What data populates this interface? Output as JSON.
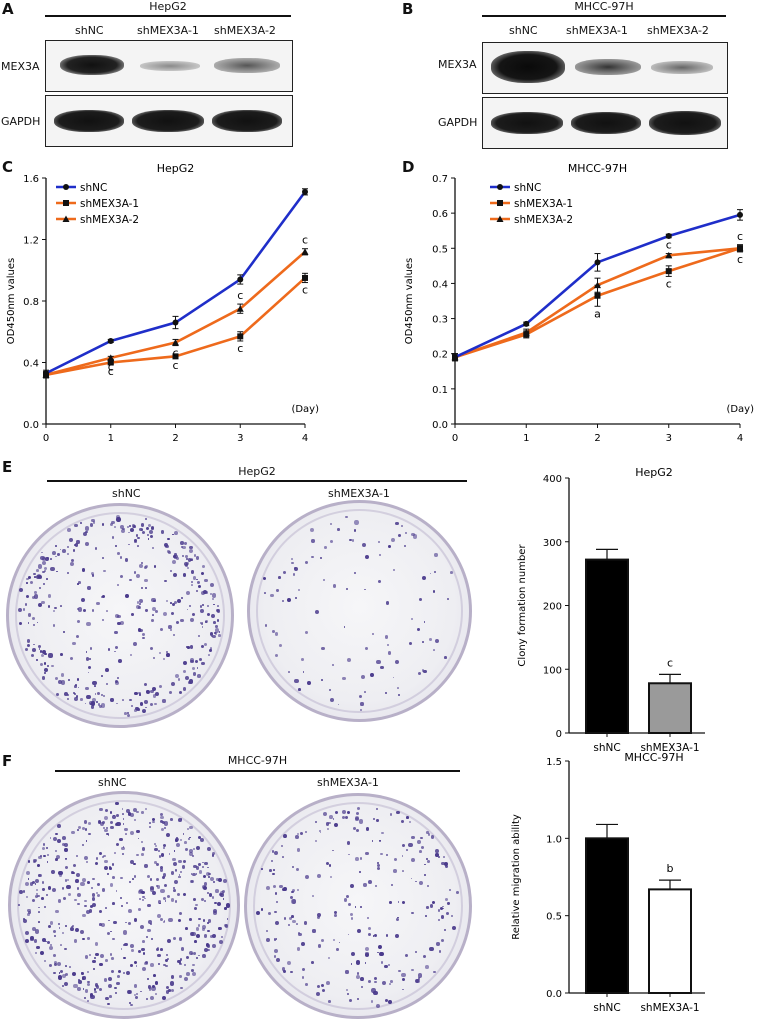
{
  "panels": {
    "A": "A",
    "B": "B",
    "C": "C",
    "D": "D",
    "E": "E",
    "F": "F"
  },
  "blot_a": {
    "title": "HepG2",
    "lanes": [
      "shNC",
      "shMEX3A-1",
      "shMEX3A-2"
    ],
    "rows": [
      "MEX3A",
      "GAPDH"
    ]
  },
  "blot_b": {
    "title": "MHCC-97H",
    "lanes": [
      "shNC",
      "shMEX3A-1",
      "shMEX3A-2"
    ],
    "rows": [
      "MEX3A",
      "GAPDH"
    ]
  },
  "colony_e": {
    "title": "HepG2",
    "labels": [
      "shNC",
      "shMEX3A-1"
    ]
  },
  "colony_f": {
    "title": "MHCC-97H",
    "labels": [
      "shNC",
      "shMEX3A-1"
    ]
  },
  "colors": {
    "shNC": "#1f2ec9",
    "shMEX3A-1": "#ee6a1c",
    "shMEX3A-2": "#ee6a1c",
    "stain": "#4a3a8c"
  },
  "chart_data": [
    {
      "id": "C",
      "type": "line",
      "title": "HepG2",
      "xlabel": "(Day)",
      "ylabel": "OD450nm values",
      "x": [
        0,
        1,
        2,
        3,
        4
      ],
      "xlim": [
        0,
        4
      ],
      "ylim": [
        0,
        1.6
      ],
      "yticks": [
        0.0,
        0.4,
        0.8,
        1.2,
        1.6
      ],
      "ytick_labels": [
        "0.0",
        "0.4",
        "0.8",
        "1.2",
        "1.6"
      ],
      "series": [
        {
          "name": "shNC",
          "marker": "circle",
          "values": [
            0.33,
            0.54,
            0.66,
            0.94,
            1.51
          ],
          "errors": [
            0.02,
            0.01,
            0.04,
            0.03,
            0.02
          ]
        },
        {
          "name": "shMEX3A-1",
          "marker": "square",
          "values": [
            0.32,
            0.4,
            0.44,
            0.57,
            0.95
          ],
          "errors": [
            0.02,
            0.01,
            0.01,
            0.03,
            0.03
          ]
        },
        {
          "name": "shMEX3A-2",
          "marker": "triangle",
          "values": [
            0.32,
            0.43,
            0.53,
            0.75,
            1.12
          ],
          "errors": [
            0.02,
            0.01,
            0.02,
            0.03,
            0.02
          ]
        }
      ],
      "annotations": [
        "c",
        "c",
        "c",
        "c",
        "c",
        "c",
        "c",
        "c"
      ]
    },
    {
      "id": "D",
      "type": "line",
      "title": "MHCC-97H",
      "xlabel": "(Day)",
      "ylabel": "OD450nm values",
      "x": [
        0,
        1,
        2,
        3,
        4
      ],
      "xlim": [
        0,
        4
      ],
      "ylim": [
        0,
        0.7
      ],
      "yticks": [
        0.0,
        0.1,
        0.2,
        0.3,
        0.4,
        0.5,
        0.6,
        0.7
      ],
      "ytick_labels": [
        "0.0",
        "0.1",
        "0.2",
        "0.3",
        "0.4",
        "0.5",
        "0.6",
        "0.7"
      ],
      "series": [
        {
          "name": "shNC",
          "marker": "circle",
          "values": [
            0.19,
            0.285,
            0.46,
            0.535,
            0.595
          ],
          "errors": [
            0.01,
            0.005,
            0.025,
            0.005,
            0.015
          ]
        },
        {
          "name": "shMEX3A-1",
          "marker": "square",
          "values": [
            0.19,
            0.255,
            0.365,
            0.435,
            0.5
          ],
          "errors": [
            0.01,
            0.01,
            0.03,
            0.015,
            0.01
          ]
        },
        {
          "name": "shMEX3A-2",
          "marker": "triangle",
          "values": [
            0.19,
            0.26,
            0.395,
            0.48,
            0.5
          ],
          "errors": [
            0.01,
            0.01,
            0.02,
            0.005,
            0.01
          ]
        }
      ],
      "annotations": [
        "a",
        "c",
        "c",
        "c",
        "c"
      ]
    },
    {
      "id": "E",
      "type": "bar",
      "title": "HepG2",
      "ylabel": "Clony formation number",
      "categories": [
        "shNC",
        "shMEX3A-1"
      ],
      "values": [
        272,
        78
      ],
      "errors": [
        16,
        14
      ],
      "ylim": [
        0,
        400
      ],
      "yticks": [
        0,
        100,
        200,
        300,
        400
      ],
      "ytick_labels": [
        "0",
        "100",
        "200",
        "300",
        "400"
      ],
      "fills": [
        "#000000",
        "#9a9a9a"
      ],
      "annotations": [
        "",
        "c"
      ]
    },
    {
      "id": "F",
      "type": "bar",
      "title": "MHCC-97H",
      "ylabel": "Relative migration ability",
      "categories": [
        "shNC",
        "shMEX3A-1"
      ],
      "values": [
        1.0,
        0.67
      ],
      "errors": [
        0.09,
        0.06
      ],
      "ylim": [
        0,
        1.5
      ],
      "yticks": [
        0.0,
        0.5,
        1.0,
        1.5
      ],
      "ytick_labels": [
        "0.0",
        "0.5",
        "1.0",
        "1.5"
      ],
      "fills": [
        "#000000",
        "#ffffff"
      ],
      "annotations": [
        "",
        "b"
      ]
    }
  ]
}
